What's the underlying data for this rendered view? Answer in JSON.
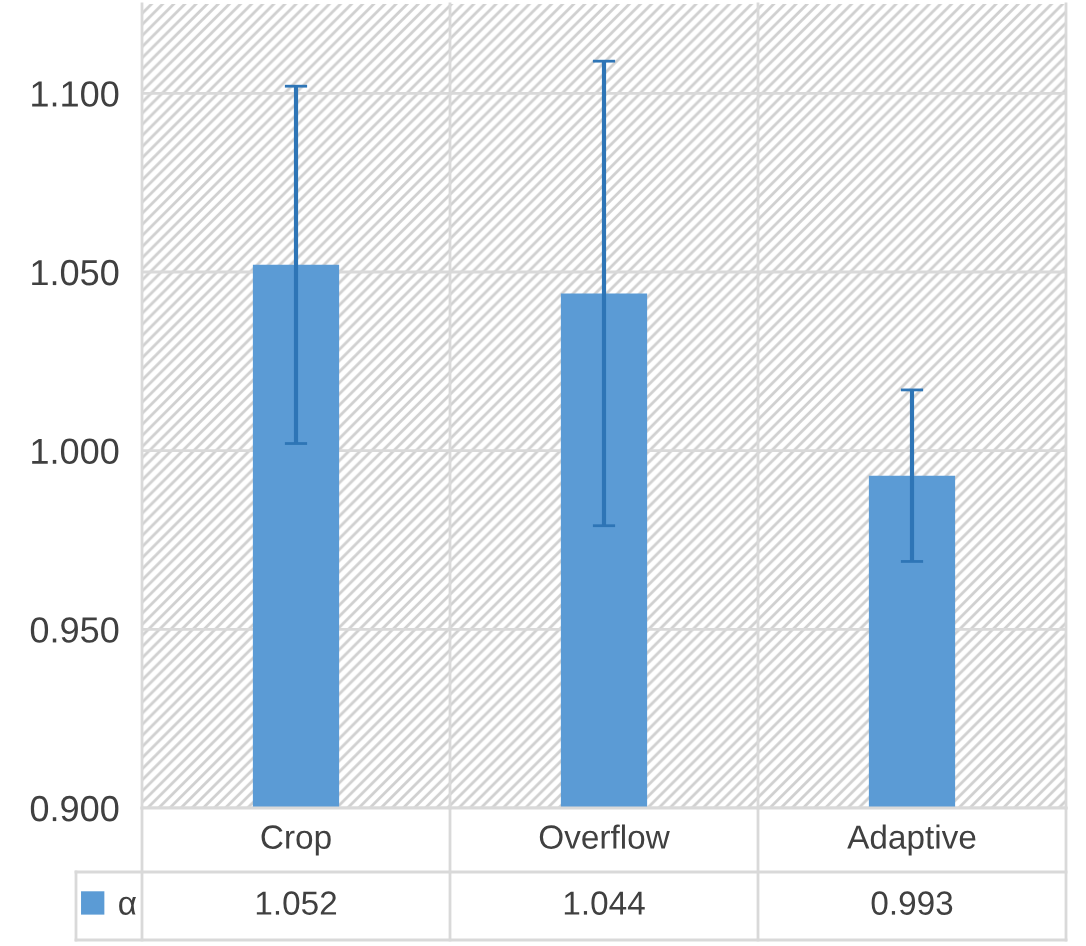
{
  "chart_data": {
    "type": "bar",
    "categories": [
      "Crop",
      "Overflow",
      "Adaptive"
    ],
    "series": [
      {
        "name": "α",
        "color": "#5b9bd5",
        "values": [
          1.052,
          1.044,
          0.993
        ],
        "errors": [
          0.05,
          0.065,
          0.024
        ]
      }
    ],
    "ylim": [
      0.9,
      1.125
    ],
    "yticks": [
      {
        "value": 0.9,
        "label": "0.900"
      },
      {
        "value": 0.95,
        "label": "0.950"
      },
      {
        "value": 1.0,
        "label": "1.000"
      },
      {
        "value": 1.05,
        "label": "1.050"
      },
      {
        "value": 1.1,
        "label": "1.100"
      }
    ],
    "grid": "y",
    "data_labels": true,
    "legend": "bottom"
  }
}
